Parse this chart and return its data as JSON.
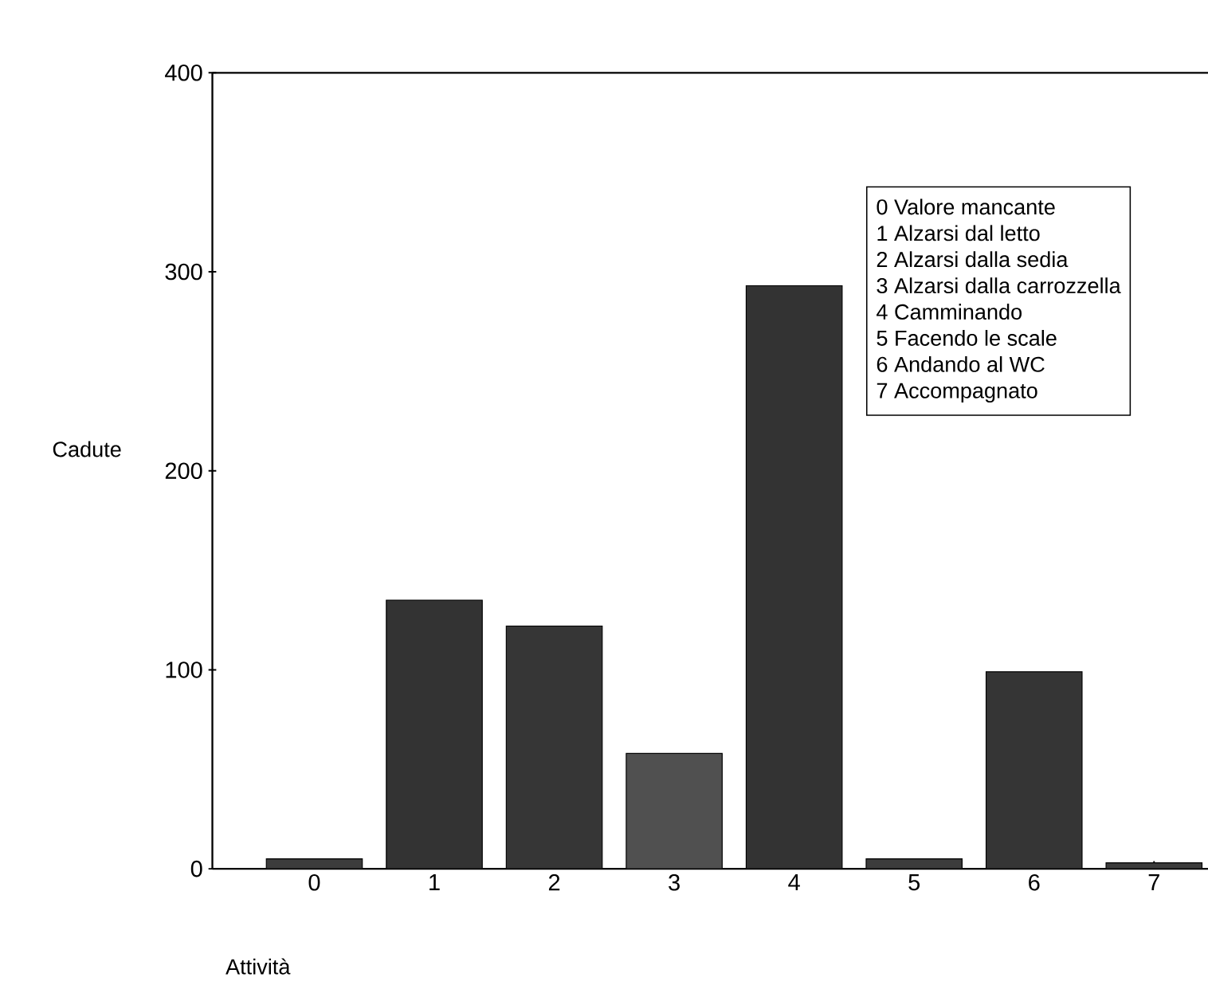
{
  "chart_data": {
    "type": "bar",
    "xlabel": "Attività",
    "ylabel": "Cadute",
    "categories": [
      "0",
      "1",
      "2",
      "3",
      "4",
      "5",
      "6",
      "7"
    ],
    "values": [
      5,
      135,
      122,
      58,
      293,
      5,
      99,
      3
    ],
    "colors": [
      "#3c3c3c",
      "#333333",
      "#363636",
      "#505050",
      "#333333",
      "#3c3c3c",
      "#353535",
      "#3c3c3c"
    ],
    "ylim": [
      0,
      400
    ],
    "yticks": [
      0,
      100,
      200,
      300,
      400
    ],
    "annotations": [
      "0 Valore mancante",
      "1 Alzarsi dal letto",
      "2 Alzarsi dalla sedia",
      "3 Alzarsi dalla carrozzella",
      "4 Camminando",
      "5 Facendo le scale",
      "6 Andando al WC",
      "7 Accompagnato"
    ]
  }
}
